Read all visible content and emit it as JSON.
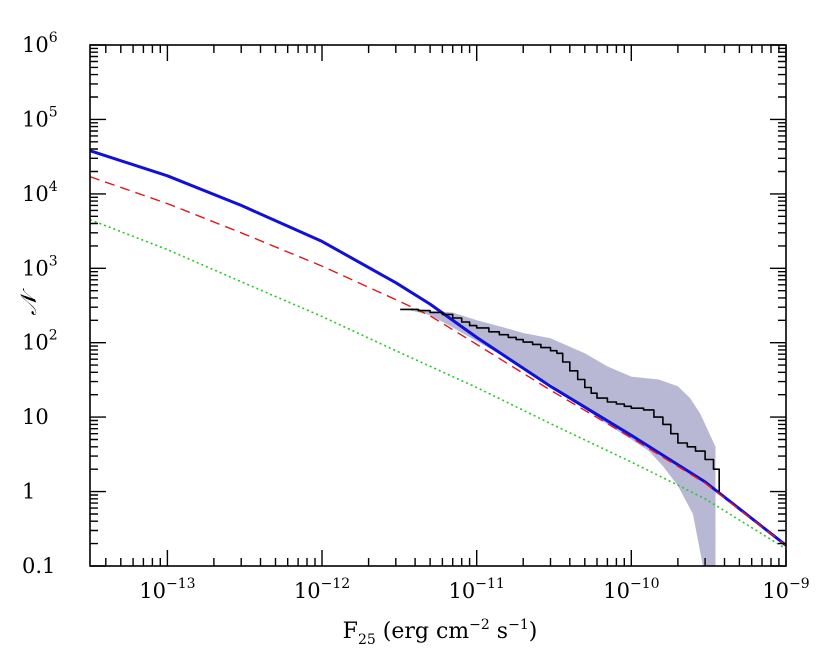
{
  "chart_data": {
    "type": "line",
    "title": "",
    "xlabel": {
      "base": "F",
      "sub": "25",
      "unit": "(erg cm",
      "e1": "−2",
      "mid": " s",
      "e2": "−1",
      "close": ")"
    },
    "ylabel": "𝒩",
    "xscale": "log",
    "yscale": "log",
    "xlim": [
      3.16e-14,
      1e-09
    ],
    "ylim": [
      0.1,
      1000000
    ],
    "grid": false,
    "legend": "none",
    "x_ticks": [
      {
        "value": 1e-13,
        "base": "10",
        "exp": "−13"
      },
      {
        "value": 1e-12,
        "base": "10",
        "exp": "−12"
      },
      {
        "value": 1e-11,
        "base": "10",
        "exp": "−11"
      },
      {
        "value": 1e-10,
        "base": "10",
        "exp": "−10"
      },
      {
        "value": 1e-09,
        "base": "10",
        "exp": "−9"
      }
    ],
    "y_ticks": [
      {
        "value": 0.1,
        "base": "0.1",
        "exp": ""
      },
      {
        "value": 1,
        "base": "1",
        "exp": ""
      },
      {
        "value": 10,
        "base": "10",
        "exp": ""
      },
      {
        "value": 100,
        "base": "10",
        "exp": "2"
      },
      {
        "value": 1000,
        "base": "10",
        "exp": "3"
      },
      {
        "value": 10000,
        "base": "10",
        "exp": "4"
      },
      {
        "value": 100000,
        "base": "10",
        "exp": "5"
      },
      {
        "value": 1000000,
        "base": "10",
        "exp": "6"
      }
    ],
    "series": [
      {
        "style": "solid-thick",
        "color": "#1010d8",
        "points": [
          [
            3.16e-14,
            38000
          ],
          [
            1e-13,
            17500
          ],
          [
            3e-13,
            7000
          ],
          [
            1e-12,
            2300
          ],
          [
            3e-12,
            640
          ],
          [
            5e-12,
            330
          ],
          [
            1e-11,
            118
          ],
          [
            3e-11,
            26
          ],
          [
            1e-10,
            5.7
          ],
          [
            3e-10,
            1.35
          ],
          [
            1e-09,
            0.19
          ]
        ]
      },
      {
        "style": "dashed",
        "color": "#e01818",
        "points": [
          [
            3.16e-14,
            17000
          ],
          [
            1e-13,
            7400
          ],
          [
            3e-13,
            3000
          ],
          [
            1e-12,
            1070
          ],
          [
            3e-12,
            380
          ],
          [
            5e-12,
            230
          ],
          [
            1e-11,
            95
          ],
          [
            3e-11,
            23
          ],
          [
            1e-10,
            5.3
          ],
          [
            3e-10,
            1.3
          ],
          [
            1e-09,
            0.19
          ]
        ]
      },
      {
        "style": "dotted",
        "color": "#22cc22",
        "points": [
          [
            3.16e-14,
            4500
          ],
          [
            1e-13,
            1780
          ],
          [
            3e-13,
            660
          ],
          [
            1e-12,
            225
          ],
          [
            3e-12,
            78
          ],
          [
            1e-11,
            25
          ],
          [
            3e-11,
            8.2
          ],
          [
            1e-10,
            2.5
          ],
          [
            3e-10,
            0.8
          ],
          [
            1e-09,
            0.17
          ]
        ]
      },
      {
        "style": "step",
        "color": "#000000",
        "points": [
          [
            3.2e-12,
            280
          ],
          [
            3.8e-12,
            280
          ],
          [
            4.2e-12,
            270
          ],
          [
            5e-12,
            255
          ],
          [
            6e-12,
            240
          ],
          [
            7e-12,
            215
          ],
          [
            8e-12,
            190
          ],
          [
            9e-12,
            170
          ],
          [
            1e-11,
            158
          ],
          [
            1.2e-11,
            140
          ],
          [
            1.4e-11,
            128
          ],
          [
            1.6e-11,
            118
          ],
          [
            1.8e-11,
            110
          ],
          [
            2e-11,
            102
          ],
          [
            2.3e-11,
            95
          ],
          [
            2.6e-11,
            86
          ],
          [
            3e-11,
            78
          ],
          [
            3.3e-11,
            72
          ],
          [
            3.6e-11,
            55
          ],
          [
            4e-11,
            42
          ],
          [
            4.5e-11,
            32
          ],
          [
            5e-11,
            25
          ],
          [
            5.5e-11,
            21
          ],
          [
            6e-11,
            18
          ],
          [
            7e-11,
            16
          ],
          [
            8e-11,
            15
          ],
          [
            9e-11,
            14
          ],
          [
            1e-10,
            13.2
          ],
          [
            1.2e-10,
            12.5
          ],
          [
            1.4e-10,
            10
          ],
          [
            1.6e-10,
            8
          ],
          [
            1.8e-10,
            6
          ],
          [
            2e-10,
            4.5
          ],
          [
            2.3e-10,
            4
          ],
          [
            2.6e-10,
            3.5
          ],
          [
            3e-10,
            2.7
          ],
          [
            3.4e-10,
            2
          ],
          [
            3.7e-10,
            2
          ],
          [
            3.7e-10,
            1
          ]
        ]
      }
    ],
    "band": {
      "color": "#b8b8d4",
      "upper": [
        [
          3.8e-12,
          290
        ],
        [
          5e-12,
          270
        ],
        [
          7e-12,
          255
        ],
        [
          1e-11,
          200
        ],
        [
          1.5e-11,
          160
        ],
        [
          2e-11,
          135
        ],
        [
          3e-11,
          115
        ],
        [
          5e-11,
          72
        ],
        [
          7e-11,
          48
        ],
        [
          1e-10,
          35
        ],
        [
          1.5e-10,
          32
        ],
        [
          2e-10,
          26
        ],
        [
          2.4e-10,
          18
        ],
        [
          2.8e-10,
          11
        ],
        [
          3.2e-10,
          6
        ],
        [
          3.5e-10,
          4
        ]
      ],
      "lower": [
        [
          3.5e-12,
          280
        ],
        [
          5e-12,
          235
        ],
        [
          7e-12,
          160
        ],
        [
          1e-11,
          105
        ],
        [
          1.5e-11,
          65
        ],
        [
          2e-11,
          45
        ],
        [
          3e-11,
          28
        ],
        [
          5e-11,
          13
        ],
        [
          7e-11,
          8
        ],
        [
          1e-10,
          5
        ],
        [
          1.3e-10,
          3.5
        ],
        [
          1.6e-10,
          2.2
        ],
        [
          2e-10,
          1.2
        ],
        [
          2.5e-10,
          0.5
        ],
        [
          2.9e-10,
          0.1
        ],
        [
          3.5e-10,
          0.1
        ]
      ]
    }
  }
}
